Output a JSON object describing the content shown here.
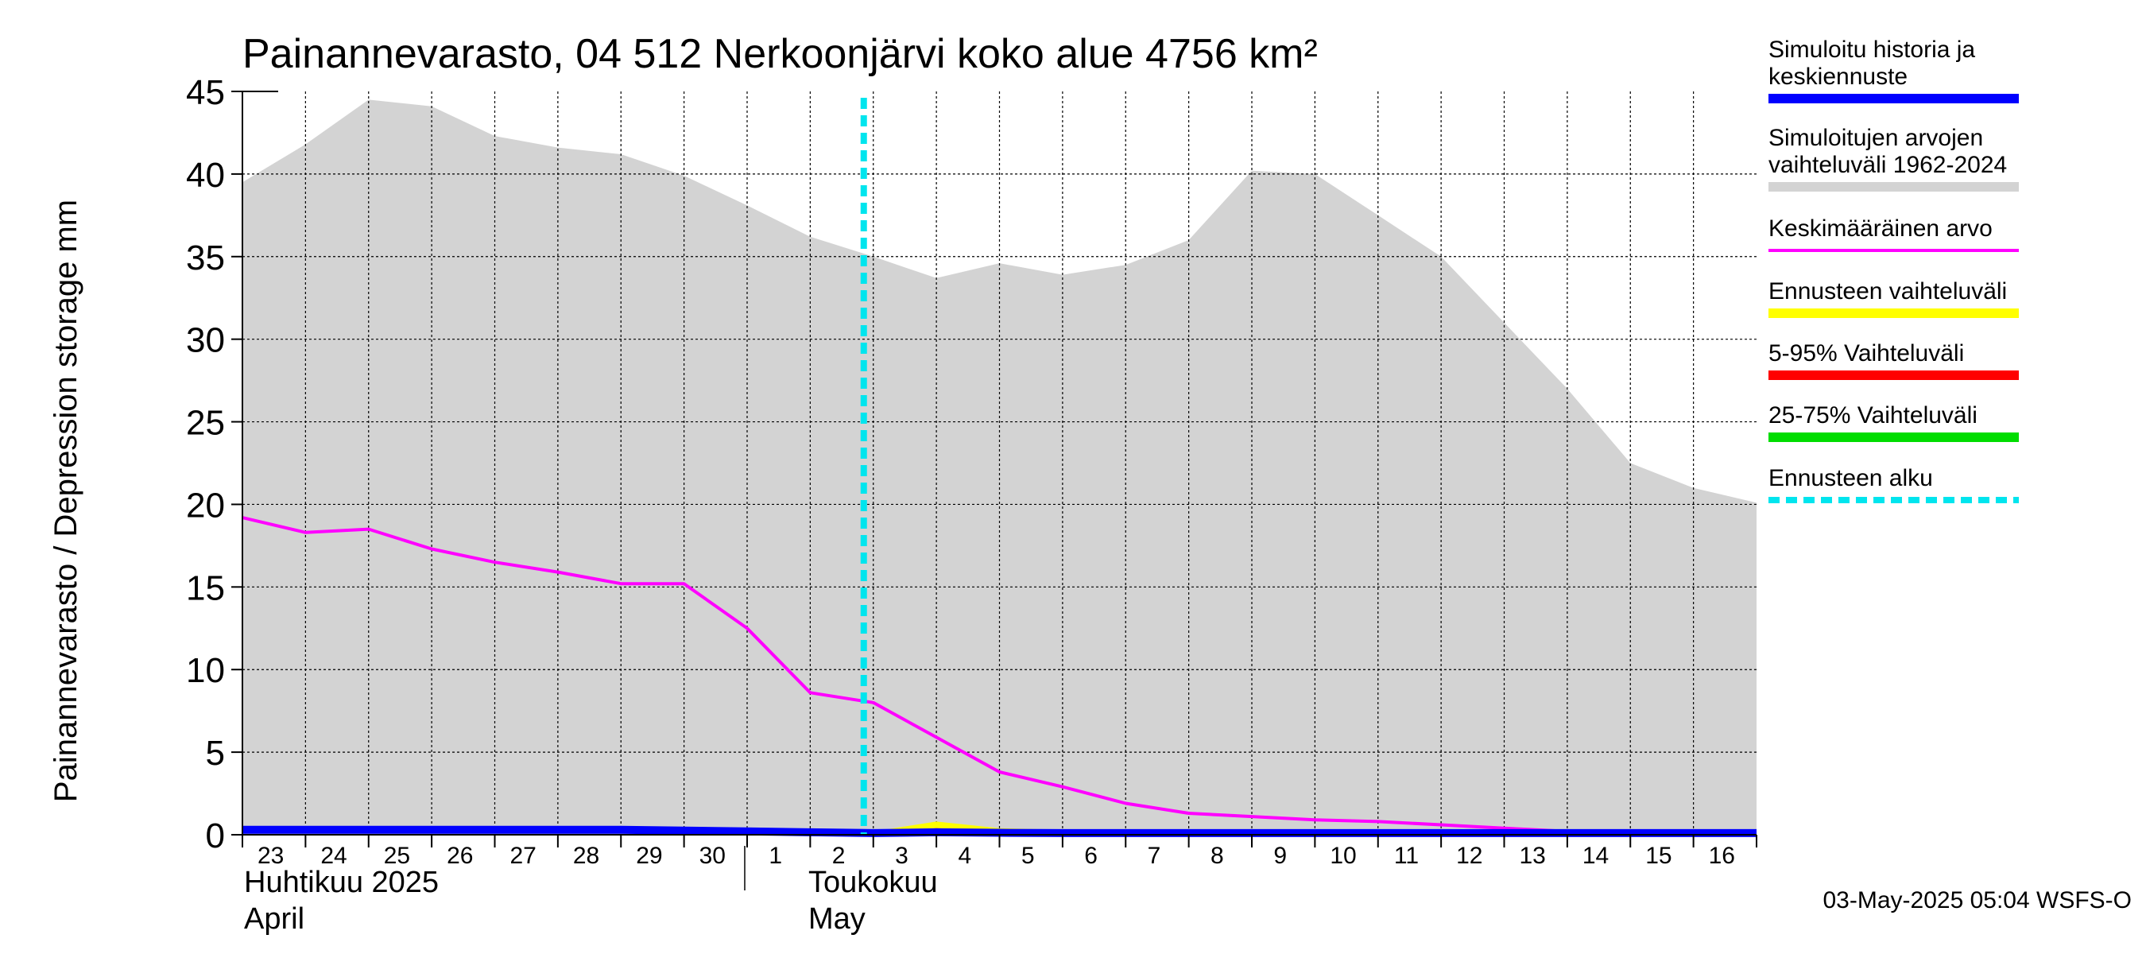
{
  "chart_data": {
    "type": "area",
    "title": "Painannevarasto, 04 512 Nerkoonjärvi koko alue 4756 km²",
    "ylabel": "Painannevarasto / Depression storage    mm",
    "ylim": [
      0,
      45
    ],
    "yticks": [
      "0",
      "5",
      "10",
      "15",
      "20",
      "25",
      "30",
      "35",
      "40",
      "45"
    ],
    "x_dates": [
      "2025-04-23",
      "2025-04-24",
      "2025-04-25",
      "2025-04-26",
      "2025-04-27",
      "2025-04-28",
      "2025-04-29",
      "2025-04-30",
      "2025-05-01",
      "2025-05-02",
      "2025-05-03",
      "2025-05-04",
      "2025-05-05",
      "2025-05-06",
      "2025-05-07",
      "2025-05-08",
      "2025-05-09",
      "2025-05-10",
      "2025-05-11",
      "2025-05-12",
      "2025-05-13",
      "2025-05-14",
      "2025-05-15",
      "2025-05-16",
      "2025-05-17"
    ],
    "day_labels": [
      "23",
      "24",
      "25",
      "26",
      "27",
      "28",
      "29",
      "30",
      "1",
      "2",
      "3",
      "4",
      "5",
      "6",
      "7",
      "8",
      "9",
      "10",
      "11",
      "12",
      "13",
      "14",
      "15",
      "16"
    ],
    "month_labels": [
      {
        "line1": "Huhtikuu  2025",
        "line2": "April"
      },
      {
        "line1": "Toukokuu",
        "line2": "May"
      }
    ],
    "grid": true,
    "forecast_start": "2025-05-03",
    "series": [
      {
        "name": "Simuloitujen arvojen vaihteluväli 1962-2024",
        "kind": "band",
        "color": "#d3d3d3",
        "upper": [
          39.5,
          41.8,
          44.5,
          44.1,
          42.3,
          41.6,
          41.2,
          39.9,
          38.1,
          36.2,
          35.0,
          33.7,
          34.6,
          33.9,
          34.5,
          36.0,
          40.2,
          40.0,
          37.5,
          35.0,
          31.0,
          27.0,
          22.5,
          21.0,
          20.1
        ],
        "lower": [
          0,
          0,
          0,
          0,
          0,
          0,
          0,
          0,
          0,
          0,
          0,
          0,
          0,
          0,
          0,
          0,
          0,
          0,
          0,
          0,
          0,
          0,
          0,
          0,
          0
        ]
      },
      {
        "name": "Keskimääräinen arvo",
        "kind": "line",
        "color": "#ff00ff",
        "values": [
          19.2,
          18.3,
          18.5,
          17.3,
          16.5,
          15.9,
          15.2,
          15.2,
          12.5,
          8.6,
          8.0,
          5.9,
          3.8,
          2.9,
          1.9,
          1.3,
          1.1,
          0.9,
          0.8,
          0.6,
          0.4,
          0.2,
          0.1,
          0.0,
          0.0
        ]
      },
      {
        "name": "Ennusteen vaihteluväli",
        "kind": "band",
        "color": "#ffff00",
        "x_start_index": 10,
        "upper": [
          0.2,
          0.8,
          0.4,
          0.3,
          0.2,
          0.2,
          0.2,
          0.2,
          0.2,
          0.2,
          0.2,
          0.2,
          0.2,
          0.2,
          0.2
        ],
        "lower": [
          0,
          0,
          0,
          0,
          0,
          0,
          0,
          0,
          0,
          0,
          0,
          0,
          0,
          0,
          0
        ]
      },
      {
        "name": "5-95% Vaihteluväli",
        "kind": "band",
        "color": "#ff0000",
        "x_start_index": 10,
        "upper": [
          0.15,
          0.4,
          0.25,
          0.2,
          0.15,
          0.15,
          0.15,
          0.15,
          0.15,
          0.15,
          0.15,
          0.15,
          0.15,
          0.15,
          0.15
        ],
        "lower": [
          0,
          0,
          0,
          0,
          0,
          0,
          0,
          0,
          0,
          0,
          0,
          0,
          0,
          0,
          0
        ]
      },
      {
        "name": "25-75% Vaihteluväli",
        "kind": "band",
        "color": "#00dd00",
        "x_start_index": 10,
        "upper": [
          0.1,
          0.15,
          0.12,
          0.1,
          0.1,
          0.1,
          0.1,
          0.1,
          0.1,
          0.1,
          0.1,
          0.1,
          0.1,
          0.1,
          0.1
        ],
        "lower": [
          0,
          0,
          0,
          0,
          0,
          0,
          0,
          0,
          0,
          0,
          0,
          0,
          0,
          0,
          0
        ]
      },
      {
        "name": "Simuloitu historia ja keskiennuste",
        "kind": "line",
        "color": "#0000ff",
        "values": [
          0.3,
          0.3,
          0.3,
          0.3,
          0.3,
          0.3,
          0.3,
          0.25,
          0.2,
          0.15,
          0.1,
          0.15,
          0.12,
          0.1,
          0.1,
          0.1,
          0.1,
          0.1,
          0.1,
          0.1,
          0.1,
          0.1,
          0.1,
          0.1,
          0.1
        ]
      }
    ],
    "legend": {
      "placement": "right",
      "items": [
        {
          "line1": "Simuloitu historia ja",
          "line2": "keskiennuste",
          "color": "#0000ff",
          "style": "solid"
        },
        {
          "line1": "Simuloitujen arvojen",
          "line2": "vaihteluväli 1962-2024",
          "color": "#d3d3d3",
          "style": "solid"
        },
        {
          "line1": "Keskimääräinen arvo",
          "line2": "",
          "color": "#ff00ff",
          "style": "thin"
        },
        {
          "line1": "Ennusteen vaihteluväli",
          "line2": "",
          "color": "#ffff00",
          "style": "solid"
        },
        {
          "line1": "5-95% Vaihteluväli",
          "line2": "",
          "color": "#ff0000",
          "style": "solid"
        },
        {
          "line1": "25-75% Vaihteluväli",
          "line2": "",
          "color": "#00dd00",
          "style": "solid"
        },
        {
          "line1": "Ennusteen alku",
          "line2": "",
          "color": "#00e5ee",
          "style": "dashed"
        }
      ]
    },
    "footer": "03-May-2025 05:04 WSFS-O"
  }
}
